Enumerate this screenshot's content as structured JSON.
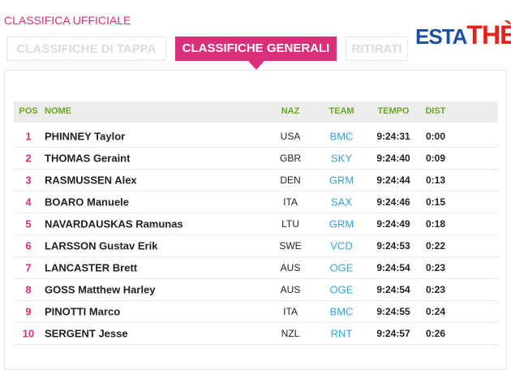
{
  "header": {
    "title": "CLASSIFICA UFFICIALE",
    "tabs": [
      "CLASSIFICHE DI TAPPA",
      "CLASSIFICHE GENERALI",
      "RITIRATI"
    ],
    "logo": {
      "left": "ESTA",
      "right": "THÈ"
    }
  },
  "table": {
    "columns": [
      "POS",
      "NOME",
      "NAZ",
      "TEAM",
      "TEMPO",
      "DIST"
    ],
    "rows": [
      [
        "1",
        "PHINNEY Taylor",
        "USA",
        "BMC",
        "9:24:31",
        "0:00"
      ],
      [
        "2",
        "THOMAS Geraint",
        "GBR",
        "SKY",
        "9:24:40",
        "0:09"
      ],
      [
        "3",
        "RASMUSSEN Alex",
        "DEN",
        "GRM",
        "9:24:44",
        "0:13"
      ],
      [
        "4",
        "BOARO Manuele",
        "ITA",
        "SAX",
        "9:24:46",
        "0:15"
      ],
      [
        "5",
        "NAVARDAUSKAS Ramunas",
        "LTU",
        "GRM",
        "9:24:49",
        "0:18"
      ],
      [
        "6",
        "LARSSON Gustav Erik",
        "SWE",
        "VCD",
        "9:24:53",
        "0:22"
      ],
      [
        "7",
        "LANCASTER Brett",
        "AUS",
        "OGE",
        "9:24:54",
        "0:23"
      ],
      [
        "8",
        "GOSS Matthew Harley",
        "AUS",
        "OGE",
        "9:24:54",
        "0:23"
      ],
      [
        "9",
        "PINOTTI Marco",
        "ITA",
        "BMC",
        "9:24:55",
        "0:24"
      ],
      [
        "10",
        "SERGENT Jesse",
        "NZL",
        "RNT",
        "9:24:57",
        "0:26"
      ]
    ]
  }
}
